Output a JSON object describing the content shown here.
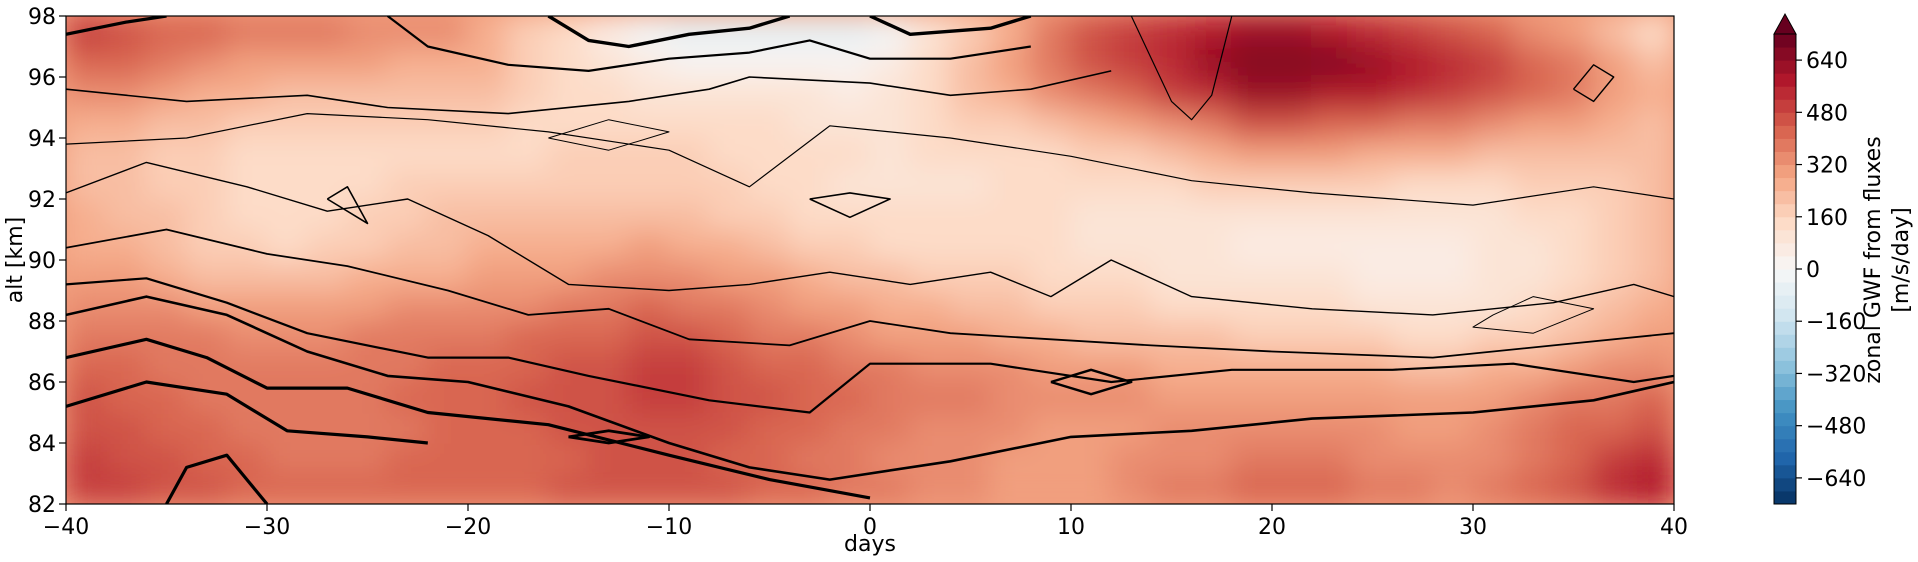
{
  "chart_data": {
    "type": "heatmap",
    "title": "",
    "xlabel": "days",
    "ylabel": "alt [km]",
    "xlim": [
      -40,
      40
    ],
    "ylim": [
      82,
      98
    ],
    "x_ticks": [
      -40,
      -30,
      -20,
      -10,
      0,
      10,
      20,
      30,
      40
    ],
    "y_ticks": [
      82,
      84,
      86,
      88,
      90,
      92,
      94,
      96,
      98
    ],
    "colorbar": {
      "label_line1": "zonal GWF from fluxes",
      "label_line2": "[m/s/day]",
      "ticks": [
        "−640",
        "−480",
        "−320",
        "−160",
        "0",
        "160",
        "320",
        "480",
        "640"
      ],
      "tick_values": [
        -640,
        -480,
        -320,
        -160,
        0,
        160,
        320,
        480,
        640
      ],
      "range": [
        -720,
        720
      ],
      "extend": "max",
      "colormap": "RdBu_r"
    },
    "grid": false,
    "contours": "black lines, thickness increasing with magnitude (overlay field)",
    "field_samples": {
      "altitudes_km": [
        82,
        84,
        86,
        88,
        90,
        92,
        94,
        96,
        98
      ],
      "days": [
        -40,
        -30,
        -20,
        -10,
        0,
        10,
        20,
        30,
        40
      ],
      "values": [
        [
          520,
          420,
          420,
          480,
          380,
          280,
          460,
          360,
          620
        ],
        [
          480,
          380,
          400,
          460,
          360,
          300,
          360,
          320,
          520
        ],
        [
          440,
          360,
          420,
          520,
          400,
          340,
          280,
          280,
          400
        ],
        [
          380,
          340,
          360,
          440,
          300,
          200,
          160,
          100,
          280
        ],
        [
          300,
          160,
          260,
          320,
          180,
          120,
          60,
          60,
          220
        ],
        [
          260,
          120,
          200,
          200,
          100,
          120,
          120,
          100,
          220
        ],
        [
          220,
          140,
          140,
          160,
          120,
          160,
          380,
          280,
          200
        ],
        [
          420,
          260,
          240,
          80,
          60,
          420,
          720,
          580,
          240
        ],
        [
          520,
          420,
          340,
          -120,
          -100,
          420,
          600,
          420,
          80
        ]
      ]
    }
  }
}
